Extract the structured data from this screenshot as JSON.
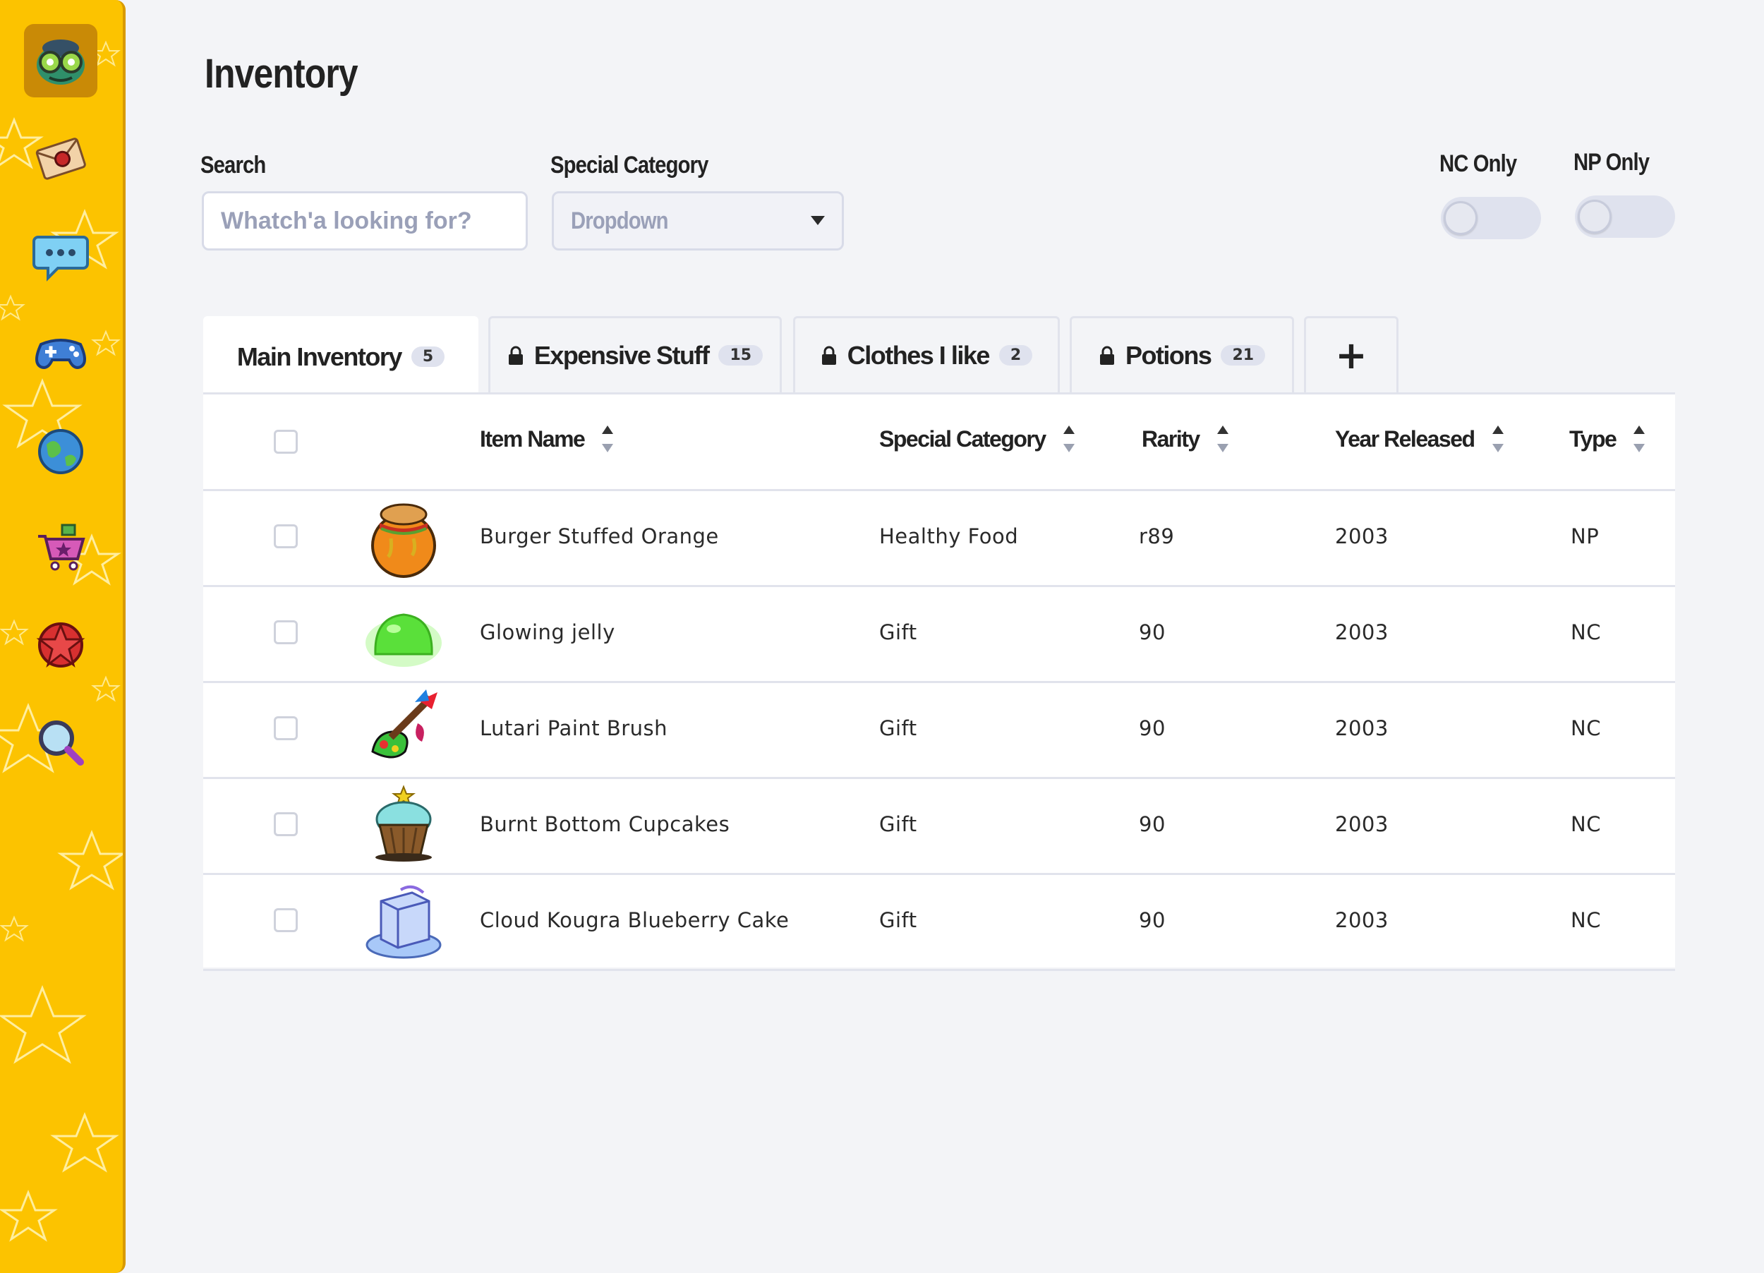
{
  "page": {
    "title": "Inventory"
  },
  "filters": {
    "search_label": "Search",
    "search_placeholder": "Whatch'a looking for?",
    "category_label": "Special Category",
    "category_value": "Dropdown",
    "nc_only_label": "NC Only",
    "np_only_label": "NP Only"
  },
  "sidebar": {
    "items": [
      {
        "icon": "avatar-icon",
        "active": true
      },
      {
        "icon": "mail-icon"
      },
      {
        "icon": "chat-icon"
      },
      {
        "icon": "gamepad-icon"
      },
      {
        "icon": "globe-icon"
      },
      {
        "icon": "shop-cart-icon"
      },
      {
        "icon": "star-badge-icon"
      },
      {
        "icon": "magnifier-icon"
      }
    ]
  },
  "tabs": [
    {
      "label": "Main Inventory",
      "count": "5",
      "locked": false,
      "active": true
    },
    {
      "label": "Expensive Stuff",
      "count": "15",
      "locked": true
    },
    {
      "label": "Clothes I like",
      "count": "2",
      "locked": true
    },
    {
      "label": "Potions",
      "count": "21",
      "locked": true
    }
  ],
  "add_tab_label": "+",
  "table": {
    "columns": [
      "Item Name",
      "Special Category",
      "Rarity",
      "Year Released",
      "Type"
    ],
    "rows": [
      {
        "name": "Burger Stuffed Orange",
        "category": "Healthy Food",
        "rarity": "r89",
        "year": "2003",
        "type": "NP"
      },
      {
        "name": "Glowing jelly",
        "category": "Gift",
        "rarity": "90",
        "year": "2003",
        "type": "NC"
      },
      {
        "name": "Lutari Paint Brush",
        "category": "Gift",
        "rarity": "90",
        "year": "2003",
        "type": "NC"
      },
      {
        "name": "Burnt Bottom Cupcakes",
        "category": "Gift",
        "rarity": "90",
        "year": "2003",
        "type": "NC"
      },
      {
        "name": "Cloud Kougra Blueberry Cake",
        "category": "Gift",
        "rarity": "90",
        "year": "2003",
        "type": "NC"
      }
    ]
  },
  "colors": {
    "sidebar": "#fcc300",
    "background": "#f3f4f7",
    "accent_border": "#e1e3ec"
  }
}
